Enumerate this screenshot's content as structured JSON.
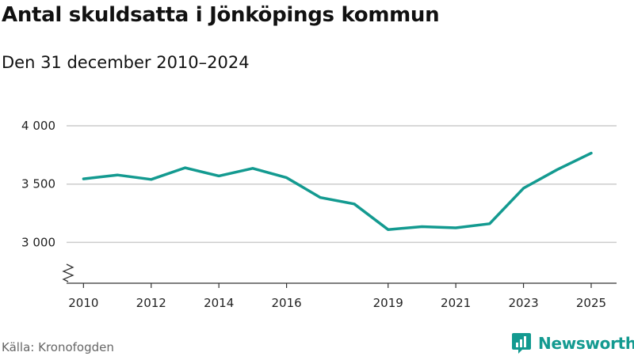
{
  "title": "Antal skuldsatta i Jönköpings kommun",
  "subtitle": "Den 31 december 2010–2024",
  "source": "Källa: Kronofogden",
  "brand": {
    "name": "Newsworthy",
    "icon": "bar-chart-icon",
    "color": "#139a90"
  },
  "colors": {
    "line": "#139a90",
    "grid": "#cccccc",
    "axis": "#333333"
  },
  "chart_data": {
    "type": "line",
    "title": "Antal skuldsatta i Jönköpings kommun",
    "subtitle": "Den 31 december 2010–2024",
    "xlabel": "",
    "ylabel": "",
    "x": [
      2010,
      2011,
      2012,
      2013,
      2014,
      2015,
      2016,
      2017,
      2018,
      2019,
      2020,
      2021,
      2022,
      2023,
      2024,
      2025
    ],
    "values": [
      3545,
      3578,
      3540,
      3640,
      3570,
      3635,
      3555,
      3385,
      3330,
      3110,
      3135,
      3125,
      3160,
      3465,
      3625,
      3765
    ],
    "x_ticks": [
      2010,
      2012,
      2014,
      2016,
      2019,
      2021,
      2023,
      2025
    ],
    "x_tick_labels": [
      "2010",
      "2012",
      "2014",
      "2016",
      "2019",
      "2021",
      "2023",
      "2025"
    ],
    "y_ticks": [
      3000,
      3500,
      4000
    ],
    "y_tick_labels": [
      "3 000",
      "3 500",
      "4 000"
    ],
    "xlim": [
      2009.5,
      2025.75
    ],
    "ylim": [
      2650,
      4000
    ],
    "grid": true,
    "y_axis_break": true
  }
}
